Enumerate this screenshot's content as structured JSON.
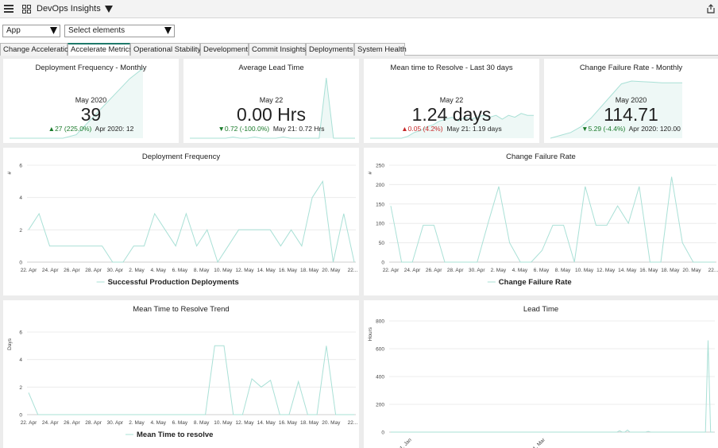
{
  "app": {
    "title": "DevOps Insights"
  },
  "filters": {
    "app_select": "App",
    "elements_select": "Select elements"
  },
  "tabs": [
    {
      "label": "Change Acceleration",
      "active": false
    },
    {
      "label": "Accelerate Metrics",
      "active": true
    },
    {
      "label": "Operational Stability",
      "active": false
    },
    {
      "label": "Development",
      "active": false
    },
    {
      "label": "Commit Insights",
      "active": false
    },
    {
      "label": "Deployments",
      "active": false
    },
    {
      "label": "System Health",
      "active": false
    }
  ],
  "colors": {
    "line": "#a9e0d6",
    "accent": "#1f7a6b",
    "up": "#1a7a2a",
    "down": "#c62828"
  },
  "kpis": [
    {
      "title": "Deployment Frequency - Monthly",
      "period": "May 2020",
      "value": "39",
      "delta_arrow": "▲",
      "delta": "27 (225.0%)",
      "delta_good": true,
      "comparison": "Apr 2020: 12",
      "spark": [
        0,
        0,
        0,
        0,
        0,
        0.05,
        0.25,
        0.45,
        0.65,
        0.85,
        1
      ]
    },
    {
      "title": "Average Lead Time",
      "period": "May 22",
      "value": "0.00 Hrs",
      "delta_arrow": "▼",
      "delta": "0.72 (-100.0%)",
      "delta_good": true,
      "comparison": "May 21: 0.72 Hrs",
      "spark": [
        0,
        0,
        0,
        0,
        0,
        0,
        0.02,
        0,
        0,
        0.02,
        0,
        0,
        0,
        0.02,
        0,
        0,
        0,
        0,
        0,
        1,
        0,
        0,
        0,
        0
      ]
    },
    {
      "title": "Mean time to Resolve - Last 30 days",
      "period": "May 22",
      "value": "1.24 days",
      "delta_arrow": "▲",
      "delta": "0.05 (4.2%)",
      "delta_good": false,
      "comparison": "May 21: 1.19 days",
      "spark": [
        0,
        0,
        0,
        0,
        0,
        0,
        0.05,
        0.15,
        0.2,
        0.3,
        0.35,
        0.45,
        0.5,
        0.55,
        0.45,
        0.55,
        0.5,
        0.55,
        0.6,
        0.55,
        0.6,
        0.5,
        0.6,
        0.55,
        0.65,
        0.6,
        0.6
      ]
    },
    {
      "title": "Change Failure Rate - Monthly",
      "period": "May 2020",
      "value": "114.71",
      "delta_arrow": "▼",
      "delta": "5.29 (-4.4%)",
      "delta_good": true,
      "comparison": "Apr 2020: 120.00",
      "spark": [
        0,
        0.05,
        0.1,
        0.2,
        0.35,
        0.55,
        0.75,
        0.95,
        1,
        0.99,
        0.98,
        0.97,
        0.97,
        0.97
      ]
    }
  ],
  "chart_data": [
    {
      "type": "line",
      "title": "Deployment Frequency",
      "xlabel": "",
      "ylabel": "#",
      "ylim": [
        0,
        6
      ],
      "yticks": [
        "0",
        "2",
        "4",
        "6"
      ],
      "xtick_labels": [
        "22. Apr",
        "24. Apr",
        "26. Apr",
        "28. Apr",
        "30. Apr",
        "2. May",
        "4. May",
        "6. May",
        "8. May",
        "10. May",
        "12. May",
        "14. May",
        "16. May",
        "18. May",
        "20. May",
        "22..."
      ],
      "series": [
        {
          "name": "Successful Production Deployments",
          "values": [
            2,
            3,
            1,
            1,
            1,
            1,
            1,
            1,
            0,
            0,
            1,
            1,
            3,
            2,
            1,
            3,
            1,
            2,
            0,
            1,
            2,
            2,
            2,
            2,
            1,
            2,
            1,
            4,
            5,
            0,
            3,
            0
          ]
        }
      ],
      "legend": "bottom",
      "grid": true
    },
    {
      "type": "line",
      "title": "Change Failure Rate",
      "xlabel": "",
      "ylabel": "#",
      "ylim": [
        0,
        250
      ],
      "yticks": [
        "0",
        "50",
        "100",
        "150",
        "200",
        "250"
      ],
      "xtick_labels": [
        "22. Apr",
        "24. Apr",
        "26. Apr",
        "28. Apr",
        "30. Apr",
        "2. May",
        "4. May",
        "6. May",
        "8. May",
        "10. May",
        "12. May",
        "14. May",
        "16. May",
        "18. May",
        "20. May",
        "22..."
      ],
      "series": [
        {
          "name": "Change Failure Rate",
          "values": [
            145,
            0,
            0,
            95,
            95,
            0,
            0,
            0,
            0,
            100,
            195,
            50,
            0,
            0,
            30,
            95,
            95,
            0,
            195,
            95,
            95,
            145,
            100,
            195,
            0,
            0,
            220,
            50,
            0,
            0,
            0
          ]
        }
      ],
      "legend": "bottom",
      "grid": true
    },
    {
      "type": "line",
      "title": "Mean Time to Resolve Trend",
      "xlabel": "",
      "ylabel": "Days",
      "ylim": [
        0,
        6
      ],
      "yticks": [
        "0",
        "2",
        "4",
        "6"
      ],
      "xtick_labels": [
        "22. Apr",
        "24. Apr",
        "26. Apr",
        "28. Apr",
        "30. Apr",
        "2. May",
        "4. May",
        "6. May",
        "8. May",
        "10. May",
        "12. May",
        "14. May",
        "16. May",
        "18. May",
        "20. May",
        "22..."
      ],
      "series": [
        {
          "name": "Mean Time to resolve",
          "values": [
            1.6,
            0,
            0,
            0,
            0,
            0,
            0,
            0,
            0,
            0,
            0,
            0,
            0,
            0,
            0,
            0,
            0,
            0,
            0,
            0,
            5,
            5,
            0,
            0,
            2.6,
            2,
            2.5,
            0,
            0,
            2.4,
            0,
            0,
            5,
            0,
            0,
            0
          ]
        }
      ],
      "legend": "bottom",
      "grid": true
    },
    {
      "type": "line",
      "title": "Lead Time",
      "xlabel": "",
      "ylabel": "Hours",
      "ylim": [
        0,
        800
      ],
      "yticks": [
        "0",
        "200",
        "400",
        "600",
        "800"
      ],
      "xtick_labels": [
        "1. Jan",
        "1. Mar"
      ],
      "series": [
        {
          "name": "",
          "values": [
            0,
            0,
            0,
            0,
            0,
            0,
            0,
            0,
            0,
            0,
            0,
            0,
            0,
            0,
            0,
            0,
            0,
            0,
            0,
            0,
            0,
            0,
            0,
            0,
            0,
            0,
            0,
            0,
            0,
            0,
            0,
            0,
            0,
            0,
            0,
            0,
            0,
            0,
            0,
            0,
            0,
            0,
            0,
            0,
            0,
            0,
            0,
            0,
            0,
            0,
            0,
            0,
            0,
            0,
            0,
            0,
            0,
            0,
            0,
            0,
            0,
            0,
            0,
            0,
            0,
            0,
            0,
            0,
            0,
            0,
            0,
            0,
            0,
            0,
            0,
            0,
            0,
            0,
            0,
            0,
            0,
            0,
            0,
            0,
            0,
            0,
            0,
            0,
            10,
            0,
            0,
            15,
            0,
            0,
            0,
            0,
            0,
            0,
            0,
            5,
            0,
            0,
            0,
            0,
            0,
            0,
            0,
            0,
            0,
            0,
            0,
            0,
            0,
            0,
            0,
            0,
            0,
            0,
            0,
            0,
            0,
            0,
            660,
            0,
            0
          ]
        }
      ],
      "legend": "none",
      "grid": true
    }
  ]
}
